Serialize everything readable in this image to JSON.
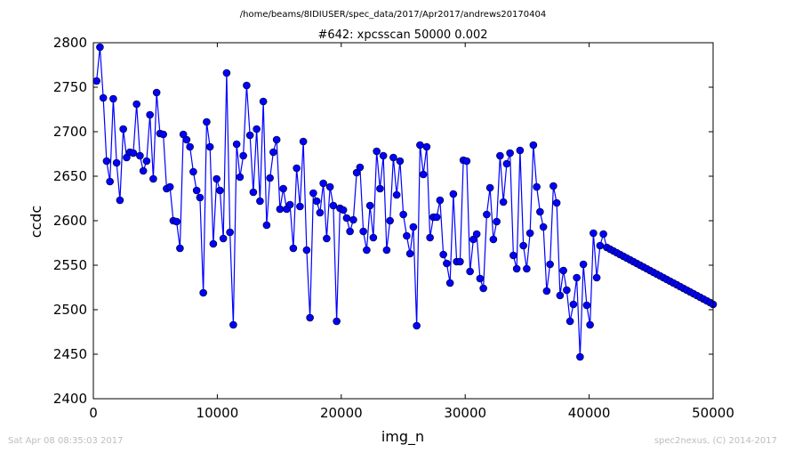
{
  "figure": {
    "suptitle": "/home/beams/8IDIUSER/spec_data/2017/Apr2017/andrews20170404",
    "footer_left": "Sat Apr 08 08:35:03 2017",
    "footer_right": "spec2nexus, (C) 2014-2017"
  },
  "chart_data": {
    "type": "line",
    "title": "#642: xpcsscan 50000 0.002",
    "xlabel": "img_n",
    "ylabel": "ccdc",
    "xlim": [
      0,
      50000
    ],
    "ylim": [
      2400,
      2800
    ],
    "xticks": [
      0,
      10000,
      20000,
      30000,
      40000,
      50000
    ],
    "yticks": [
      2400,
      2450,
      2500,
      2550,
      2600,
      2650,
      2700,
      2750,
      2800
    ],
    "marker": "circle",
    "color": "#0000ff",
    "grid": false,
    "series": [
      {
        "x": [
          262,
          531,
          800,
          1069,
          1338,
          1607,
          1876,
          2145,
          2414,
          2683,
          2952,
          3221,
          3490,
          3759,
          4028,
          4297,
          4566,
          4835,
          5104,
          5373,
          5642,
          5911,
          6180,
          6449,
          6718,
          6987,
          7256,
          7525,
          7794,
          8063,
          8332,
          8601,
          8870,
          9139,
          9408,
          9677,
          9946,
          10215,
          10484,
          10753,
          11022,
          11291,
          11560,
          11829,
          12098,
          12367,
          12636,
          12905,
          13174,
          13443,
          13712,
          13981,
          14250,
          14519,
          14788,
          15057,
          15326,
          15595,
          15864,
          16133,
          16402,
          16671,
          16940,
          17209,
          17478,
          17747,
          18016,
          18285,
          18554,
          18823,
          19092,
          19361,
          19630,
          19899,
          20168,
          20437,
          20706,
          20975,
          21244,
          21513,
          21782,
          22051,
          22320,
          22589,
          22858,
          23127,
          23396,
          23665,
          23934,
          24203,
          24472,
          24741,
          25010,
          25279,
          25548,
          25817,
          26086,
          26355,
          26624,
          26893,
          27162,
          27431,
          27700,
          27969,
          28238,
          28507,
          28776,
          29045,
          29314,
          29583,
          29852,
          30121,
          30390,
          30659,
          30928,
          31197,
          31466,
          31735,
          32004,
          32273,
          32542,
          32811,
          33080,
          33349,
          33618,
          33887,
          34156,
          34425,
          34694,
          34963,
          35232,
          35501,
          35770,
          36039,
          36308,
          36577,
          36846,
          37115,
          37384,
          37653,
          37922,
          38191,
          38460,
          38729,
          38998,
          39267,
          39536,
          39805,
          40074,
          40343,
          40612,
          40881,
          41150,
          41419,
          41688,
          41957,
          42226,
          42495,
          42764,
          43033,
          43302,
          43571,
          43840,
          44109,
          44378,
          44647,
          44916,
          45185,
          45454,
          45723,
          45992,
          46261,
          46530,
          46799,
          47068,
          47337,
          47606,
          47875,
          48144,
          48413,
          48682,
          48951,
          49220,
          49489,
          49758,
          50000
        ],
        "values": [
          2757,
          2795,
          2738,
          2667,
          2644,
          2737,
          2665,
          2623,
          2703,
          2671,
          2677,
          2676,
          2731,
          2673,
          2656,
          2667,
          2719,
          2647,
          2744,
          2698,
          2697,
          2636,
          2638,
          2600,
          2599,
          2569,
          2697,
          2691,
          2683,
          2655,
          2634,
          2626,
          2519,
          2711,
          2683,
          2574,
          2647,
          2634,
          2580,
          2766,
          2587,
          2483,
          2686,
          2649,
          2673,
          2752,
          2696,
          2632,
          2703,
          2622,
          2734,
          2595,
          2648,
          2677,
          2691,
          2613,
          2636,
          2613,
          2618,
          2569,
          2659,
          2616,
          2689,
          2567,
          2491,
          2631,
          2622,
          2609,
          2642,
          2580,
          2638,
          2617,
          2487,
          2614,
          2612,
          2603,
          2588,
          2601,
          2654,
          2660,
          2588,
          2567,
          2617,
          2581,
          2678,
          2636,
          2673,
          2567,
          2600,
          2671,
          2629,
          2667,
          2607,
          2583,
          2563,
          2593,
          2482,
          2685,
          2652,
          2683,
          2581,
          2604,
          2604,
          2623,
          2562,
          2552,
          2530,
          2630,
          2554,
          2554,
          2668,
          2667,
          2543,
          2579,
          2585,
          2535,
          2524,
          2607,
          2637,
          2579,
          2599,
          2673,
          2621,
          2664,
          2676,
          2561,
          2546,
          2679,
          2572,
          2546,
          2586,
          2685,
          2638,
          2610,
          2593,
          2521,
          2551,
          2639,
          2620,
          2516,
          2544,
          2522,
          2487,
          2506,
          2536,
          2447,
          2551,
          2505,
          2483,
          2586,
          2536,
          2572,
          2585,
          2570,
          2568,
          2566,
          2564,
          2562,
          2560,
          2558,
          2556,
          2554,
          2552,
          2550,
          2548,
          2546,
          2544,
          2542,
          2540,
          2538,
          2536,
          2534,
          2532,
          2530,
          2528,
          2526,
          2524,
          2522,
          2520,
          2518,
          2516,
          2514,
          2512,
          2510,
          2508,
          2506
        ]
      }
    ]
  }
}
